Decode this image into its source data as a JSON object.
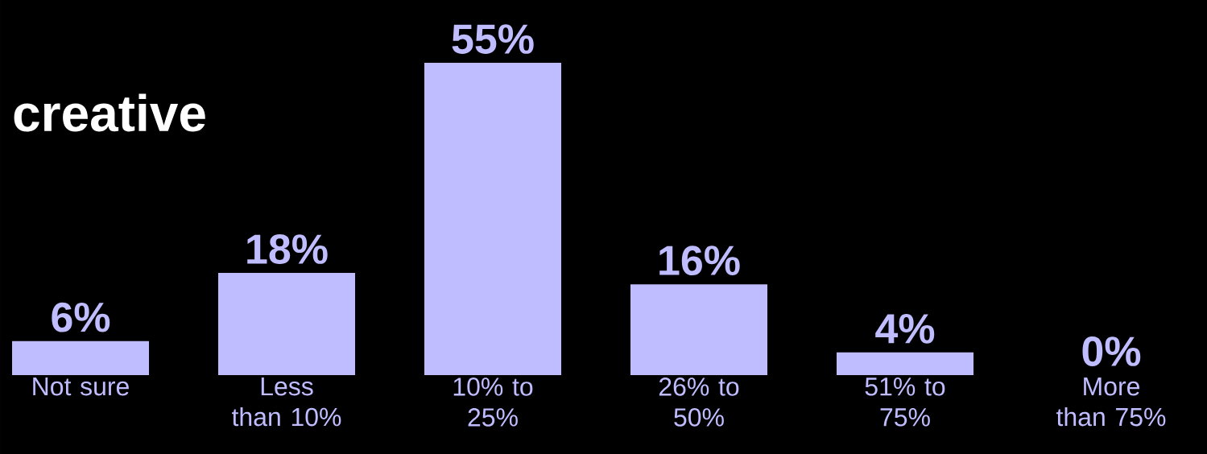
{
  "chart_data": {
    "type": "bar",
    "title": "creative",
    "categories": [
      "Not sure",
      "Less than 10%",
      "10% to 25%",
      "26% to 50%",
      "51% to 75%",
      "More than 75%"
    ],
    "values": [
      6,
      18,
      55,
      16,
      4,
      0
    ],
    "value_labels": [
      "6%",
      "18%",
      "55%",
      "16%",
      "4%",
      "0%"
    ],
    "color": "#bfbcff"
  }
}
